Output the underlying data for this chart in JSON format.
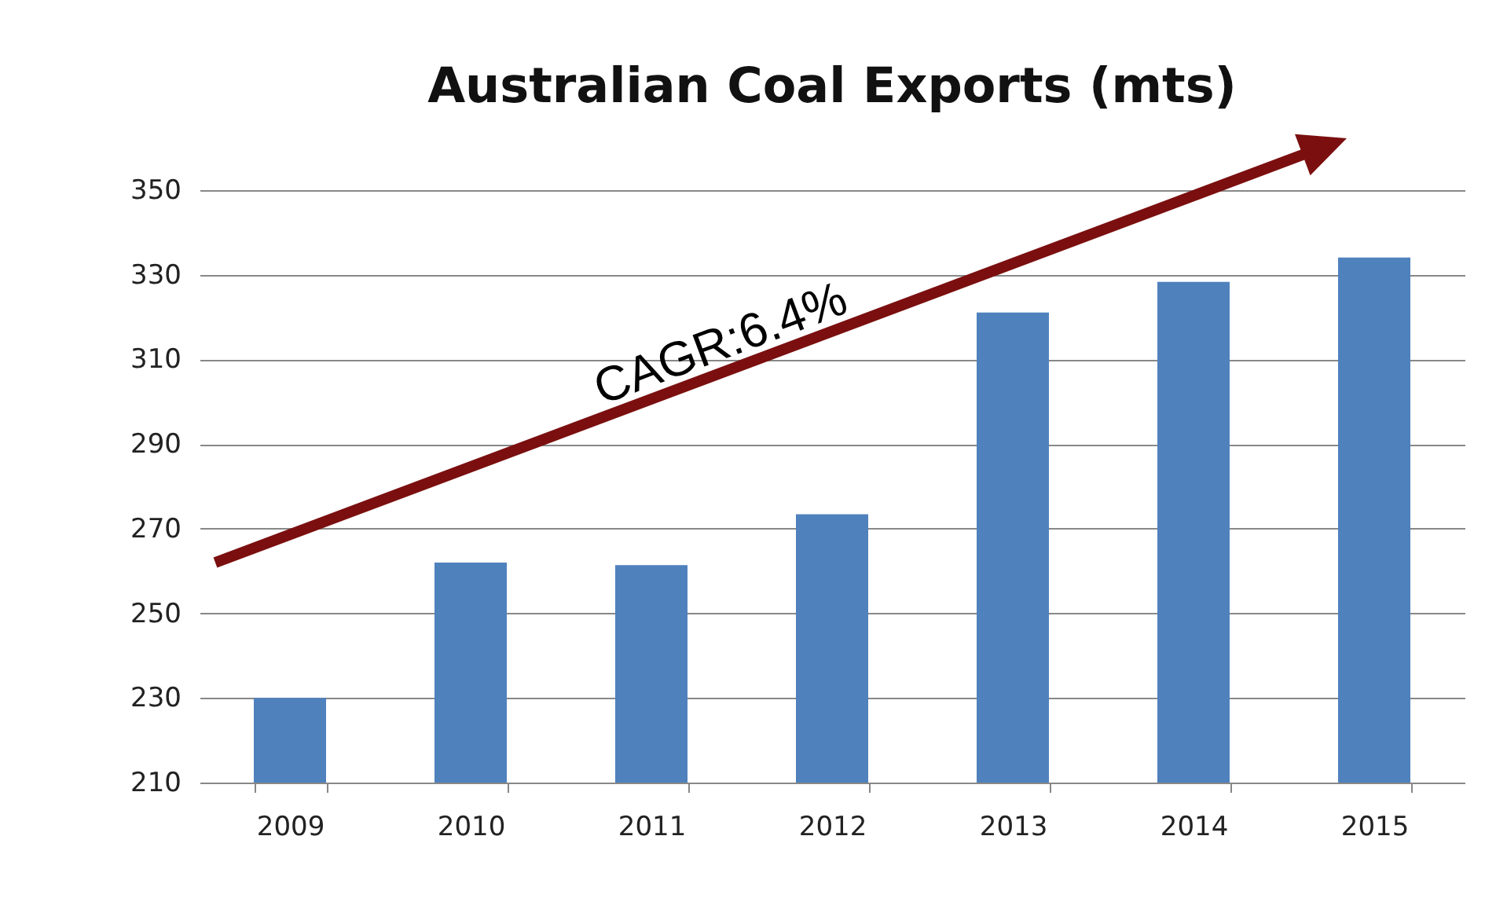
{
  "chart_data": {
    "type": "bar",
    "title": "Australian Coal Exports (mts)",
    "categories": [
      "2009",
      "2010",
      "2011",
      "2012",
      "2013",
      "2014",
      "2015"
    ],
    "values": [
      230,
      262,
      261.4,
      273.4,
      321.1,
      328.3,
      334.1
    ],
    "color": "#4f81bd",
    "ylim": [
      210,
      350
    ],
    "yticks": [
      210,
      230,
      250,
      270,
      290,
      310,
      330,
      350
    ],
    "grid": "y",
    "annotations": [
      "CAGR:6.4%"
    ]
  }
}
